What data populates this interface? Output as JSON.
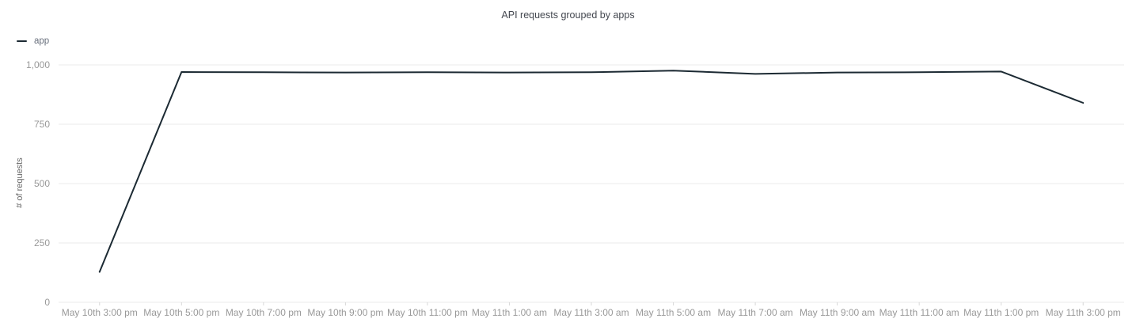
{
  "chart_data": {
    "type": "line",
    "title": "API requests grouped by apps",
    "xlabel": "",
    "ylabel": "# of requests",
    "categories": [
      "May 10th 3:00 pm",
      "May 10th 5:00 pm",
      "May 10th 7:00 pm",
      "May 10th 9:00 pm",
      "May 10th 11:00 pm",
      "May 11th 1:00 am",
      "May 11th 3:00 am",
      "May 11th 5:00 am",
      "May 11th 7:00 am",
      "May 11th 9:00 am",
      "May 11th 11:00 am",
      "May 11th 1:00 pm",
      "May 11th 3:00 pm"
    ],
    "series": [
      {
        "name": "app",
        "color": "#1c2a33",
        "values": [
          128,
          970,
          969,
          968,
          969,
          968,
          969,
          976,
          962,
          968,
          969,
          972,
          840
        ]
      }
    ],
    "ylim": [
      0,
      1000
    ],
    "y_ticks": [
      {
        "value": 0,
        "label": "0"
      },
      {
        "value": 250,
        "label": "250"
      },
      {
        "value": 500,
        "label": "500"
      },
      {
        "value": 750,
        "label": "750"
      },
      {
        "value": 1000,
        "label": "1,000"
      }
    ],
    "grid": "horizontal",
    "legend_position": "top-left"
  },
  "theme": {
    "line_color": "#1c2a33",
    "grid_color": "#ebebeb",
    "tick_mark_color": "#d8d8d8",
    "tick_label_color": "#999999",
    "axis_title_color": "#666666",
    "title_color": "#43474f",
    "legend_text_color": "#69707d",
    "background": "#ffffff"
  }
}
